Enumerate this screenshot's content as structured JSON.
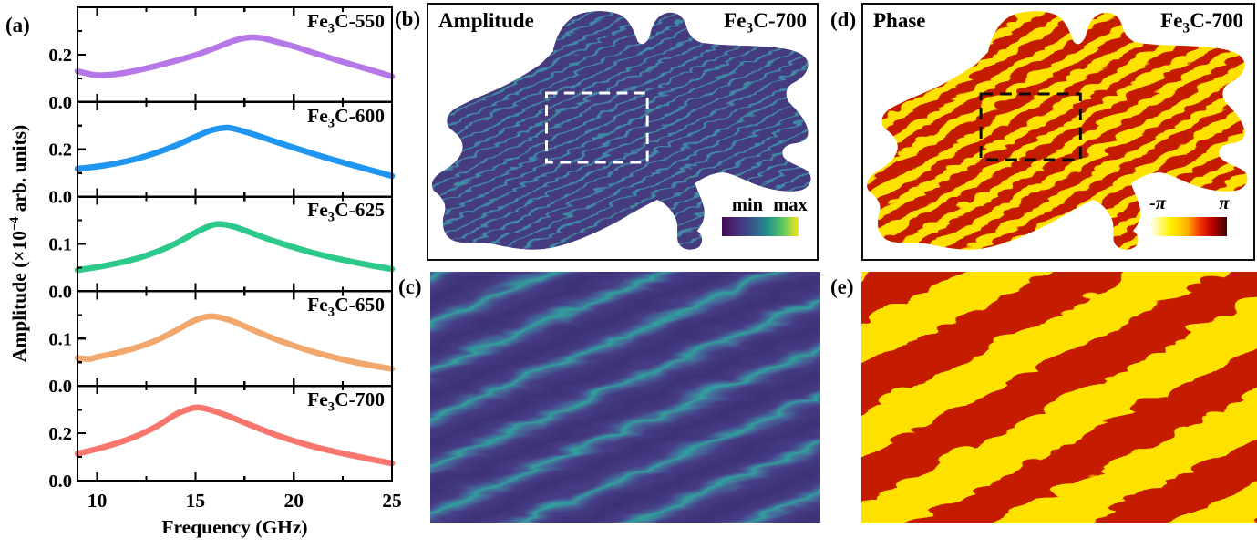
{
  "figure": {
    "background": "#ffffff",
    "panels": {
      "a": {
        "label": "(a)"
      },
      "b": {
        "label": "(b)",
        "title": "Amplitude",
        "sample": {
          "pre": "Fe",
          "sub": "3",
          "post": "C-700"
        },
        "colorbar": {
          "min": "min",
          "max": "max",
          "gradient": [
            "#440c54",
            "#46327e",
            "#365c8d",
            "#21918c",
            "#5ec962",
            "#f4e61e"
          ]
        },
        "map_colors": {
          "base": "#453a7f",
          "stripe": "#4189a4"
        },
        "selection_box_color": "#ffffff"
      },
      "c": {
        "label": "(c)",
        "map_colors": {
          "dark_band": "#3c3175",
          "light_band": "#463c86",
          "line": "#2fa29b"
        }
      },
      "d": {
        "label": "(d)",
        "title": "Phase",
        "sample": {
          "pre": "Fe",
          "sub": "3",
          "post": "C-700"
        },
        "colorbar": {
          "min": "-π",
          "max": "π",
          "gradient": [
            "#ffffff",
            "#fff300",
            "#ffb000",
            "#f03000",
            "#c00000",
            "#420000"
          ]
        },
        "map_colors": {
          "yellow": "#ffe103",
          "red": "#c51c04"
        },
        "selection_box_color": "#0a0a0a"
      },
      "e": {
        "label": "(e)",
        "map_colors": {
          "yellow": "#ffe103",
          "red": "#c51c04"
        }
      }
    }
  },
  "chart_data": {
    "type": "line",
    "xlabel": "Frequency (GHz)",
    "ylabel_pre": "Amplitude (×10",
    "ylabel_sup": "−4",
    "ylabel_post": " arb. units)",
    "x_range": [
      9,
      25
    ],
    "x_ticks": [
      10,
      15,
      20,
      25
    ],
    "x_tick_labels": [
      "10",
      "15",
      "20",
      "25"
    ],
    "x_minor_ticks": [
      12.5,
      17.5,
      22.5
    ],
    "grid": false,
    "panels": [
      {
        "label_pre": "Fe",
        "label_sub": "3",
        "label_post": "C-550",
        "color": "#b678e8",
        "ylim": [
          0,
          0.4
        ],
        "ytick_labels": [
          "0.2",
          "0.0"
        ],
        "x": [
          9,
          9.5,
          10,
          11,
          12,
          13,
          14,
          15,
          16,
          17,
          17.8,
          18.5,
          19,
          20,
          21,
          22,
          23,
          24,
          25
        ],
        "y": [
          0.13,
          0.12,
          0.113,
          0.118,
          0.133,
          0.152,
          0.174,
          0.198,
          0.228,
          0.26,
          0.273,
          0.268,
          0.257,
          0.235,
          0.208,
          0.182,
          0.157,
          0.133,
          0.108
        ]
      },
      {
        "label_pre": "Fe",
        "label_sub": "3",
        "label_post": "C-600",
        "color": "#1f97f2",
        "ylim": [
          0,
          0.4
        ],
        "ytick_labels": [
          "0.2",
          "0.0"
        ],
        "x": [
          9,
          10,
          11,
          12,
          13,
          14,
          15,
          15.8,
          16.5,
          17,
          18,
          19,
          20,
          21,
          22,
          23,
          24,
          25
        ],
        "y": [
          0.118,
          0.127,
          0.141,
          0.16,
          0.185,
          0.216,
          0.253,
          0.28,
          0.291,
          0.286,
          0.262,
          0.234,
          0.207,
          0.181,
          0.156,
          0.133,
          0.11,
          0.087
        ]
      },
      {
        "label_pre": "Fe",
        "label_sub": "3",
        "label_post": "C-625",
        "color": "#2cc98b",
        "ylim": [
          0,
          0.2
        ],
        "ytick_labels": [
          "0.1",
          "0.0"
        ],
        "x": [
          9,
          10,
          11,
          12,
          13,
          14,
          15,
          15.8,
          16.3,
          17,
          18,
          19,
          20,
          21,
          22,
          23,
          24,
          25
        ],
        "y": [
          0.045,
          0.051,
          0.059,
          0.069,
          0.083,
          0.101,
          0.124,
          0.139,
          0.142,
          0.136,
          0.121,
          0.106,
          0.093,
          0.081,
          0.071,
          0.062,
          0.054,
          0.047
        ]
      },
      {
        "label_pre": "Fe",
        "label_sub": "3",
        "label_post": "C-650",
        "color": "#f2a76d",
        "ylim": [
          0,
          0.2
        ],
        "ytick_labels": [
          "0.1",
          "0.0"
        ],
        "x": [
          9,
          9.6,
          10,
          11,
          12,
          13,
          14,
          15,
          15.8,
          16.5,
          17,
          18,
          19,
          20,
          21,
          22,
          23,
          24,
          25
        ],
        "y": [
          0.059,
          0.057,
          0.061,
          0.07,
          0.081,
          0.096,
          0.117,
          0.139,
          0.147,
          0.142,
          0.135,
          0.117,
          0.1,
          0.085,
          0.072,
          0.061,
          0.051,
          0.043,
          0.036
        ]
      },
      {
        "label_pre": "Fe",
        "label_sub": "3",
        "label_post": "C-700",
        "color": "#f8766d",
        "ylim": [
          0,
          0.4
        ],
        "ytick_labels": [
          "0.2",
          "0.0"
        ],
        "x": [
          9,
          10,
          11,
          12,
          13,
          14,
          14.6,
          15.1,
          15.7,
          16.5,
          17,
          18,
          19,
          20,
          21,
          22,
          23,
          24,
          25
        ],
        "y": [
          0.114,
          0.134,
          0.158,
          0.188,
          0.228,
          0.28,
          0.3,
          0.309,
          0.3,
          0.278,
          0.262,
          0.228,
          0.196,
          0.168,
          0.144,
          0.124,
          0.106,
          0.089,
          0.073
        ]
      }
    ]
  }
}
